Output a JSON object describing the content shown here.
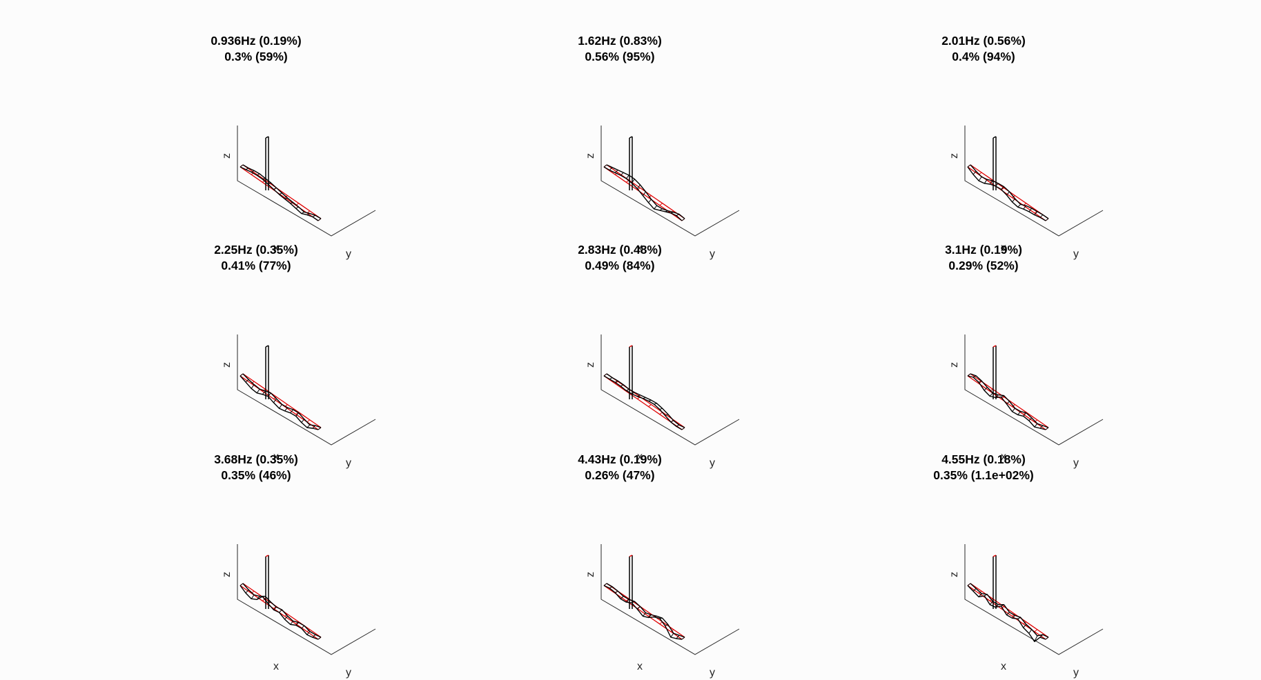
{
  "figure": {
    "background": "#fcfcfc",
    "mode_color": "#000000",
    "reference_color": "#e00000"
  },
  "chart_data": [
    {
      "type": "line",
      "title_line1": "0.936Hz (0.19%)",
      "title_line2": "0.3% (59%)",
      "xlabel": "x",
      "ylabel": "y",
      "zlabel": "z",
      "shape_a": [
        0,
        2,
        4,
        5,
        5,
        3,
        1,
        -1,
        -2,
        -3,
        -5,
        -7,
        -3,
        0,
        0
      ],
      "shape_b": [
        0,
        1,
        3,
        4,
        3,
        2,
        0,
        -2,
        -4,
        -5,
        -6,
        -8,
        -4,
        -1,
        0
      ]
    },
    {
      "type": "line",
      "title_line1": "1.62Hz (0.83%)",
      "title_line2": "0.56% (95%)",
      "xlabel": "x",
      "ylabel": "y",
      "zlabel": "z",
      "shape_a": [
        0,
        1,
        3,
        5,
        6,
        5,
        2,
        -3,
        -8,
        -12,
        -8,
        -4,
        0,
        2,
        0
      ],
      "shape_b": [
        0,
        2,
        4,
        6,
        8,
        8,
        5,
        0,
        -6,
        -10,
        -9,
        -6,
        -2,
        1,
        0
      ]
    },
    {
      "type": "line",
      "title_line1": "2.01Hz (0.56%)",
      "title_line2": "0.4% (94%)",
      "xlabel": "x",
      "ylabel": "y",
      "zlabel": "z",
      "shape_a": [
        0,
        -6,
        -10,
        -8,
        -3,
        0,
        1,
        -2,
        -7,
        -9,
        -6,
        -4,
        -3,
        -1,
        0
      ],
      "shape_b": [
        0,
        -4,
        -7,
        -5,
        -1,
        1,
        2,
        0,
        -5,
        -8,
        -4,
        -2,
        -1,
        0,
        0
      ]
    },
    {
      "type": "line",
      "title_line1": "2.25Hz (0.35%)",
      "title_line2": "0.41% (77%)",
      "xlabel": "x",
      "ylabel": "y",
      "zlabel": "z",
      "shape_a": [
        0,
        -4,
        -8,
        -9,
        -5,
        -2,
        -6,
        -9,
        -7,
        -4,
        -3,
        -7,
        -9,
        -4,
        0
      ],
      "shape_b": [
        0,
        -3,
        -5,
        -6,
        -3,
        0,
        -3,
        -6,
        -5,
        -2,
        -1,
        -5,
        -8,
        -3,
        0
      ]
    },
    {
      "type": "line",
      "title_line1": "2.83Hz (0.48%)",
      "title_line2": "0.49% (84%)",
      "xlabel": "x",
      "ylabel": "y",
      "zlabel": "z",
      "shape_a": [
        0,
        1,
        2,
        2,
        1,
        2,
        4,
        7,
        9,
        10,
        8,
        4,
        0,
        -1,
        0
      ],
      "shape_b": [
        0,
        0,
        1,
        1,
        0,
        1,
        3,
        5,
        7,
        8,
        6,
        3,
        -1,
        -2,
        0
      ]
    },
    {
      "type": "line",
      "title_line1": "3.1Hz (0.19%)",
      "title_line2": "0.29% (52%)",
      "xlabel": "x",
      "ylabel": "y",
      "zlabel": "z",
      "shape_a": [
        0,
        4,
        2,
        -5,
        -8,
        -4,
        3,
        -2,
        -8,
        -7,
        -3,
        -4,
        -8,
        -4,
        0
      ],
      "shape_b": [
        0,
        3,
        1,
        -3,
        -6,
        -3,
        2,
        -1,
        -6,
        -5,
        -1,
        -3,
        -6,
        -3,
        0
      ]
    },
    {
      "type": "line",
      "title_line1": "3.68Hz (0.35%)",
      "title_line2": "0.35% (46%)",
      "xlabel": "x",
      "ylabel": "y",
      "zlabel": "z",
      "shape_a": [
        0,
        -6,
        -9,
        -4,
        7,
        2,
        -2,
        0,
        -5,
        -7,
        -2,
        -1,
        -5,
        -3,
        0
      ],
      "shape_b": [
        0,
        -4,
        -6,
        -2,
        4,
        1,
        -1,
        1,
        -3,
        -5,
        -1,
        0,
        -3,
        -2,
        0
      ]
    },
    {
      "type": "line",
      "title_line1": "4.43Hz (0.19%)",
      "title_line2": "0.26% (47%)",
      "xlabel": "x",
      "ylabel": "y",
      "zlabel": "z",
      "shape_a": [
        0,
        2,
        1,
        -3,
        -2,
        3,
        -1,
        -6,
        -2,
        5,
        9,
        3,
        -9,
        -5,
        0
      ],
      "shape_b": [
        0,
        1,
        0,
        -2,
        -1,
        2,
        0,
        -4,
        -1,
        3,
        6,
        2,
        -6,
        -3,
        0
      ]
    },
    {
      "type": "line",
      "title_line1": "4.55Hz (0.18%)",
      "title_line2": "0.35% (1.1e+02%)",
      "xlabel": "x",
      "ylabel": "y",
      "zlabel": "z",
      "shape_a": [
        0,
        -3,
        -6,
        2,
        -6,
        -4,
        4,
        -4,
        -3,
        2,
        -6,
        -9,
        -16,
        -3,
        0
      ],
      "shape_b": [
        0,
        -2,
        -4,
        1,
        -4,
        -3,
        3,
        -3,
        -2,
        1,
        -4,
        -6,
        -10,
        -2,
        0
      ]
    }
  ]
}
